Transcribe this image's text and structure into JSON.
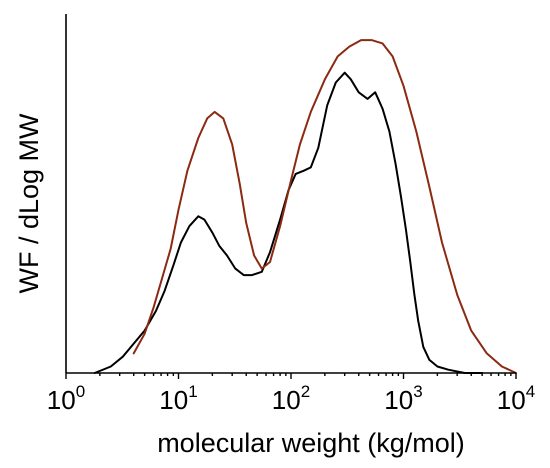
{
  "chart_data": {
    "type": "line",
    "title": "",
    "xlabel": "molecular weight (kg/mol)",
    "ylabel": "WF / dLog MW",
    "xscale": "log",
    "xlim": [
      1,
      10000
    ],
    "ylim": [
      0,
      1.1
    ],
    "x_ticks": [
      {
        "base": "10",
        "exp": "0",
        "value": 1
      },
      {
        "base": "10",
        "exp": "1",
        "value": 10
      },
      {
        "base": "10",
        "exp": "2",
        "value": 100
      },
      {
        "base": "10",
        "exp": "3",
        "value": 1000
      },
      {
        "base": "10",
        "exp": "4",
        "value": 10000
      }
    ],
    "y_ticks_labeled": false,
    "grid": false,
    "legend": "none",
    "series": [
      {
        "color": "#000000",
        "points": [
          [
            1.8,
            0.0
          ],
          [
            2.5,
            0.02
          ],
          [
            3.2,
            0.05
          ],
          [
            4.0,
            0.09
          ],
          [
            5.0,
            0.13
          ],
          [
            6.3,
            0.19
          ],
          [
            7.5,
            0.25
          ],
          [
            9.0,
            0.33
          ],
          [
            10.5,
            0.4
          ],
          [
            12.5,
            0.45
          ],
          [
            15.0,
            0.48
          ],
          [
            17.0,
            0.47
          ],
          [
            20.0,
            0.43
          ],
          [
            23.0,
            0.39
          ],
          [
            27.0,
            0.36
          ],
          [
            32.0,
            0.32
          ],
          [
            38.0,
            0.3
          ],
          [
            45.0,
            0.3
          ],
          [
            55.0,
            0.31
          ],
          [
            65.0,
            0.37
          ],
          [
            80.0,
            0.47
          ],
          [
            95.0,
            0.56
          ],
          [
            110.0,
            0.61
          ],
          [
            130.0,
            0.62
          ],
          [
            150.0,
            0.63
          ],
          [
            175.0,
            0.69
          ],
          [
            210.0,
            0.82
          ],
          [
            250.0,
            0.89
          ],
          [
            300.0,
            0.92
          ],
          [
            340.0,
            0.9
          ],
          [
            400.0,
            0.86
          ],
          [
            480.0,
            0.84
          ],
          [
            560.0,
            0.86
          ],
          [
            650.0,
            0.81
          ],
          [
            750.0,
            0.74
          ],
          [
            850.0,
            0.64
          ],
          [
            950.0,
            0.54
          ],
          [
            1050.0,
            0.44
          ],
          [
            1150.0,
            0.34
          ],
          [
            1250.0,
            0.24
          ],
          [
            1350.0,
            0.16
          ],
          [
            1500.0,
            0.08
          ],
          [
            1700.0,
            0.04
          ],
          [
            2000.0,
            0.02
          ],
          [
            2500.0,
            0.01
          ],
          [
            3500.0,
            0.0
          ],
          [
            5000.0,
            0.0
          ]
        ]
      },
      {
        "color": "#8b2a12",
        "points": [
          [
            4.0,
            0.06
          ],
          [
            5.0,
            0.12
          ],
          [
            6.0,
            0.2
          ],
          [
            7.0,
            0.28
          ],
          [
            8.5,
            0.38
          ],
          [
            10.0,
            0.5
          ],
          [
            12.0,
            0.62
          ],
          [
            15.0,
            0.72
          ],
          [
            18.0,
            0.78
          ],
          [
            21.0,
            0.8
          ],
          [
            25.0,
            0.78
          ],
          [
            30.0,
            0.7
          ],
          [
            35.0,
            0.58
          ],
          [
            40.0,
            0.46
          ],
          [
            47.0,
            0.36
          ],
          [
            55.0,
            0.32
          ],
          [
            65.0,
            0.34
          ],
          [
            80.0,
            0.45
          ],
          [
            100.0,
            0.59
          ],
          [
            120.0,
            0.7
          ],
          [
            150.0,
            0.8
          ],
          [
            200.0,
            0.9
          ],
          [
            260.0,
            0.97
          ],
          [
            330.0,
            1.0
          ],
          [
            420.0,
            1.02
          ],
          [
            520.0,
            1.02
          ],
          [
            650.0,
            1.01
          ],
          [
            800.0,
            0.97
          ],
          [
            1000.0,
            0.88
          ],
          [
            1300.0,
            0.74
          ],
          [
            1700.0,
            0.57
          ],
          [
            2200.0,
            0.4
          ],
          [
            3000.0,
            0.24
          ],
          [
            4000.0,
            0.13
          ],
          [
            5500.0,
            0.06
          ],
          [
            7500.0,
            0.02
          ],
          [
            10000.0,
            0.0
          ]
        ]
      }
    ]
  }
}
